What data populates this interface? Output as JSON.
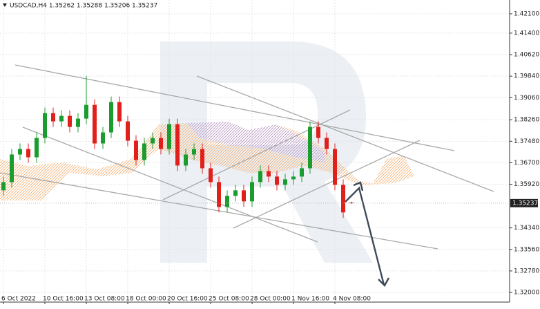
{
  "chart_data": {
    "type": "candlestick",
    "title": "USDCAD,H4  1.35262 1.35288 1.35206 1.35237",
    "categories": [
      "6 Oct 2022",
      null,
      null,
      null,
      null,
      "10 Oct 16:00",
      null,
      null,
      null,
      null,
      "13 Oct 08:00",
      null,
      null,
      null,
      null,
      "18 Oct 00:00",
      null,
      null,
      null,
      null,
      "20 Oct 16:00",
      null,
      null,
      null,
      null,
      "25 Oct 08:00",
      null,
      null,
      null,
      null,
      "28 Oct 00:00",
      null,
      null,
      null,
      null,
      "1 Nov 16:00",
      null,
      null,
      null,
      null,
      "4 Nov 08:00",
      null,
      null
    ],
    "open": [
      1.357,
      1.36,
      1.37,
      1.372,
      1.369,
      1.376,
      1.385,
      1.382,
      1.384,
      1.38,
      1.383,
      1.388,
      1.374,
      1.378,
      1.389,
      1.382,
      1.375,
      1.368,
      1.374,
      1.376,
      1.372,
      1.381,
      1.366,
      1.37,
      1.372,
      1.365,
      1.36,
      1.351,
      1.355,
      1.357,
      1.353,
      1.36,
      1.364,
      1.362,
      1.359,
      1.361,
      1.362,
      1.365,
      1.38,
      1.376,
      1.372,
      1.359,
      1.35262
    ],
    "high": [
      1.362,
      1.372,
      1.374,
      1.374,
      1.378,
      1.387,
      1.387,
      1.386,
      1.386,
      1.385,
      1.3985,
      1.39,
      1.38,
      1.391,
      1.391,
      1.384,
      1.377,
      1.376,
      1.378,
      1.378,
      1.383,
      1.383,
      1.372,
      1.374,
      1.374,
      1.367,
      1.362,
      1.357,
      1.359,
      1.359,
      1.362,
      1.366,
      1.366,
      1.364,
      1.363,
      1.364,
      1.367,
      1.382,
      1.382,
      1.378,
      1.374,
      1.361,
      1.35288
    ],
    "low": [
      1.355,
      1.358,
      1.368,
      1.367,
      1.367,
      1.374,
      1.38,
      1.38,
      1.378,
      1.378,
      1.381,
      1.372,
      1.372,
      1.376,
      1.38,
      1.373,
      1.366,
      1.366,
      1.372,
      1.37,
      1.37,
      1.364,
      1.364,
      1.368,
      1.363,
      1.358,
      1.349,
      1.349,
      1.353,
      1.351,
      1.351,
      1.358,
      1.36,
      1.357,
      1.357,
      1.359,
      1.36,
      1.363,
      1.374,
      1.37,
      1.357,
      1.347,
      1.35206
    ],
    "close": [
      1.36,
      1.37,
      1.372,
      1.369,
      1.376,
      1.385,
      1.382,
      1.384,
      1.38,
      1.383,
      1.388,
      1.374,
      1.378,
      1.389,
      1.382,
      1.375,
      1.368,
      1.374,
      1.376,
      1.372,
      1.381,
      1.366,
      1.37,
      1.372,
      1.365,
      1.36,
      1.351,
      1.355,
      1.357,
      1.353,
      1.36,
      1.364,
      1.362,
      1.359,
      1.361,
      1.362,
      1.365,
      1.38,
      1.376,
      1.372,
      1.359,
      1.349,
      1.35237
    ],
    "up_color": "#1a9c2e",
    "down_color": "#e0201b",
    "ylim": [
      1.3165,
      1.426
    ],
    "yticks": [
      {
        "value": 1.421,
        "label": "1.42100"
      },
      {
        "value": 1.414,
        "label": "1.41400"
      },
      {
        "value": 1.4062,
        "label": "1.40620"
      },
      {
        "value": 1.3984,
        "label": "1.39840"
      },
      {
        "value": 1.3906,
        "label": "1.39060"
      },
      {
        "value": 1.3826,
        "label": "1.38260"
      },
      {
        "value": 1.3748,
        "label": "1.37480"
      },
      {
        "value": 1.367,
        "label": "1.36700"
      },
      {
        "value": 1.3592,
        "label": "1.35920"
      },
      {
        "value": 1.3434,
        "label": "1.34340"
      },
      {
        "value": 1.3356,
        "label": "1.33560"
      },
      {
        "value": 1.3278,
        "label": "1.32780"
      },
      {
        "value": 1.32,
        "label": "1.32000"
      }
    ],
    "grid": true
  }
}
